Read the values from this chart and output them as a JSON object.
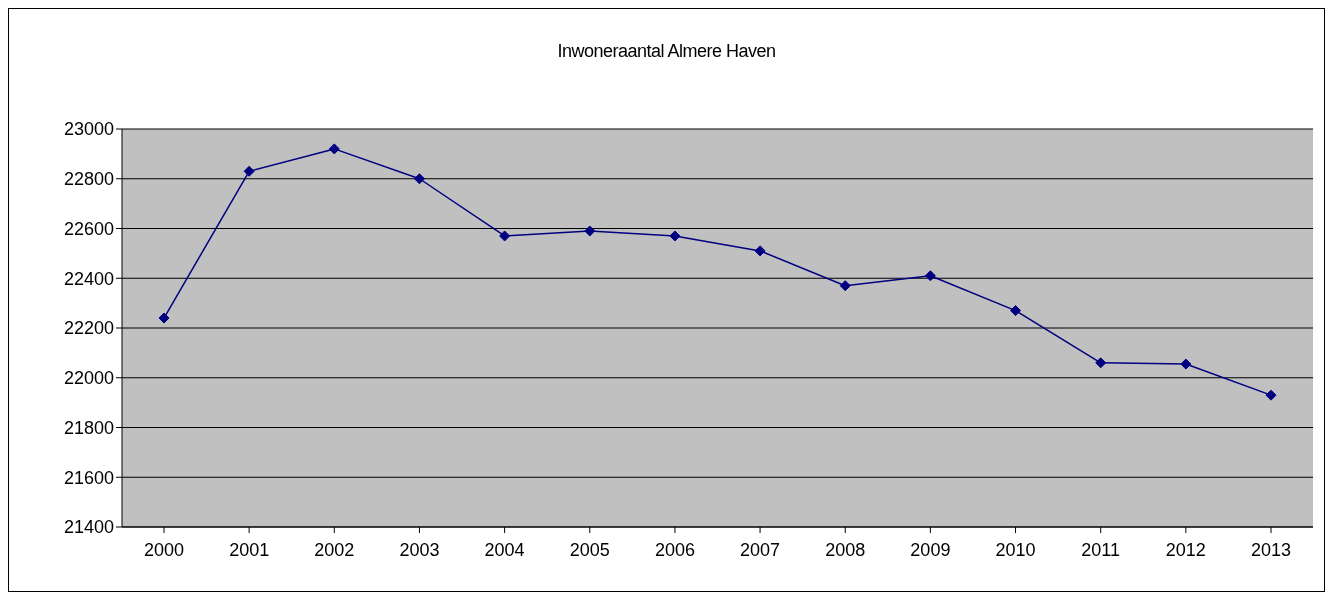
{
  "chart_data": {
    "type": "line",
    "title": "Inwoneraantal Almere Haven",
    "categories": [
      "2000",
      "2001",
      "2002",
      "2003",
      "2004",
      "2005",
      "2006",
      "2007",
      "2008",
      "2009",
      "2010",
      "2011",
      "2012",
      "2013"
    ],
    "series": [
      {
        "color": "#000080",
        "values": [
          22240,
          22830,
          22920,
          22800,
          22570,
          22590,
          22570,
          22510,
          22370,
          22410,
          22270,
          22060,
          22055,
          21930
        ]
      }
    ],
    "ylim": [
      21400,
      23000
    ],
    "yticks": [
      21400,
      21600,
      21800,
      22000,
      22200,
      22400,
      22600,
      22800,
      23000
    ],
    "grid": "y",
    "marker": "diamond",
    "line_style": "solid"
  }
}
